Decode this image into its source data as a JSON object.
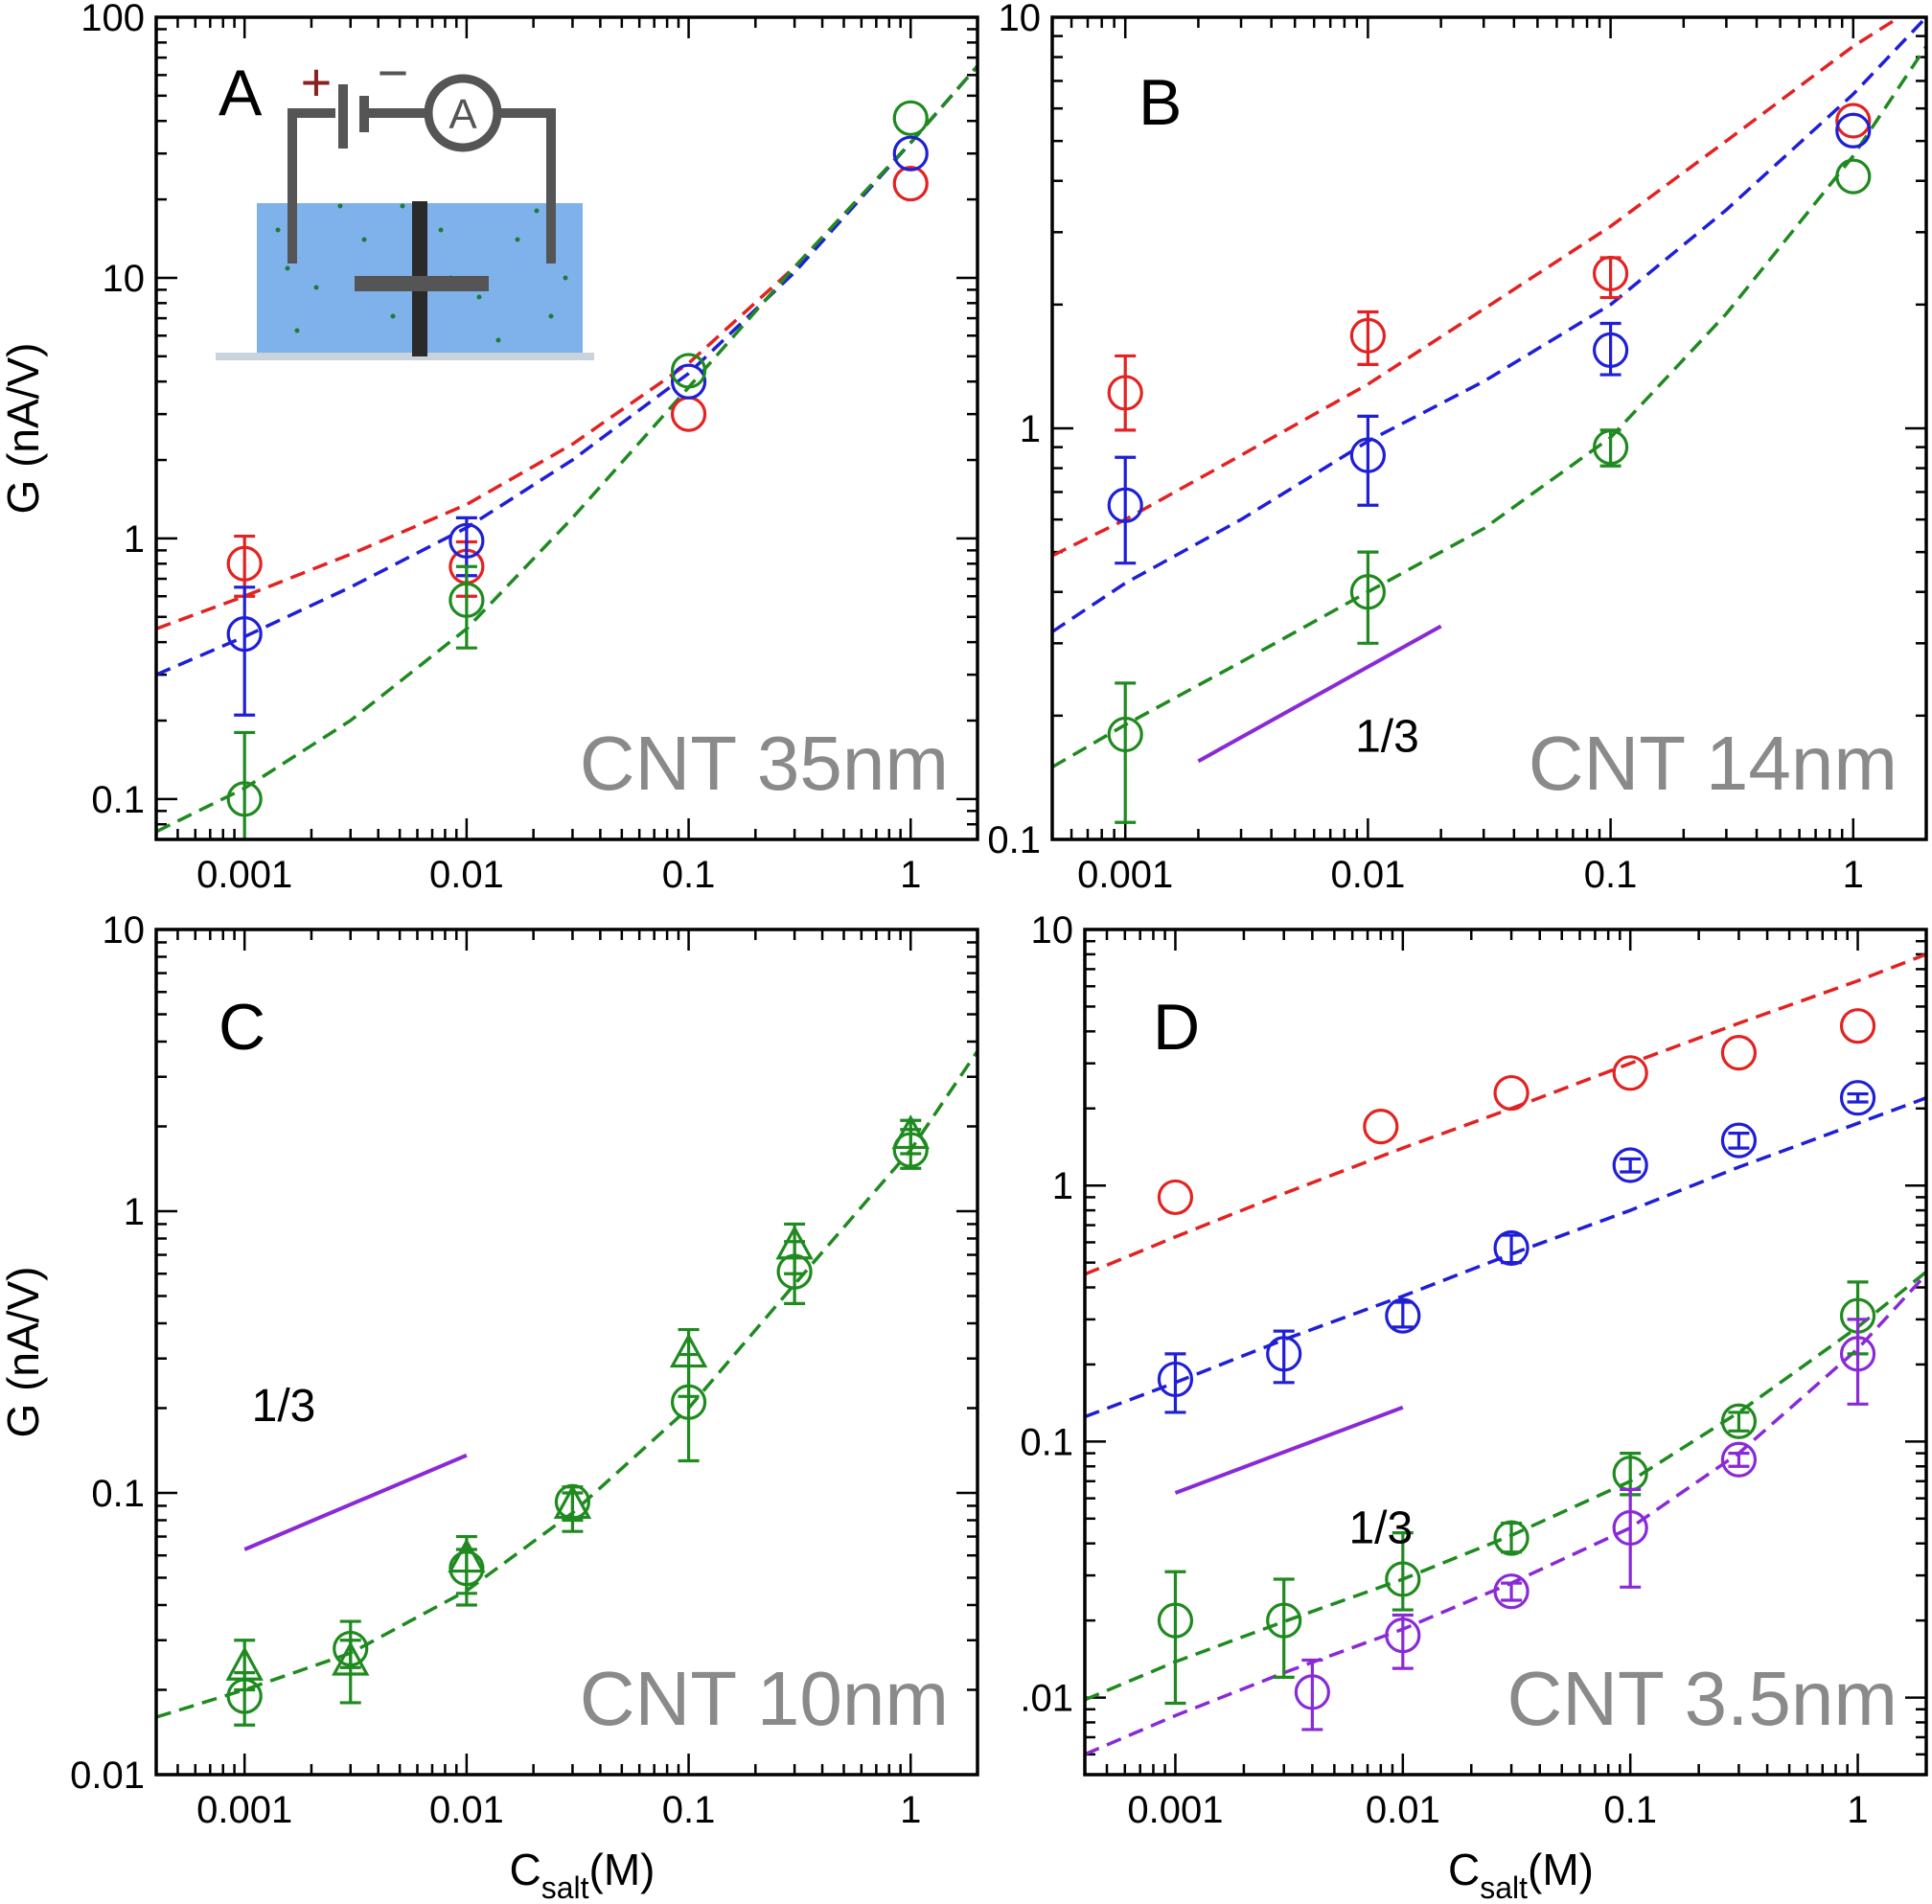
{
  "colors": {
    "red": "#e32222",
    "blue": "#1f1fd6",
    "green": "#1f8a1f",
    "purple": "#8a2ad6",
    "title_gray": "#8a8a8a"
  },
  "chart_data": [
    {
      "id": "A",
      "type": "scatter",
      "letter": "A",
      "title": "CNT 35nm",
      "xscale": "log",
      "yscale": "log",
      "xlim": [
        0.0004,
        2
      ],
      "ylim": [
        0.07,
        100
      ],
      "xticks": [
        0.001,
        0.01,
        0.1,
        1
      ],
      "xtick_labels": [
        "0.001",
        "0.01",
        "0.1",
        "1"
      ],
      "yticks": [
        0.1,
        1,
        10,
        100
      ],
      "ytick_labels": [
        "0.1",
        "1",
        "10",
        "100"
      ],
      "ylabel": "G (nA/V)",
      "xlabel": "",
      "inset": {
        "plus": "+",
        "minus": "−",
        "meter": "A"
      },
      "series": [
        {
          "color": "red",
          "marker": "circle",
          "x": [
            0.001,
            0.01,
            0.1,
            1
          ],
          "y": [
            0.8,
            0.78,
            3.0,
            23
          ],
          "err_low": [
            0.6,
            0.6,
            null,
            null
          ],
          "err_high": [
            1.02,
            0.97,
            null,
            null
          ]
        },
        {
          "color": "blue",
          "marker": "circle",
          "x": [
            0.001,
            0.01,
            0.1,
            1
          ],
          "y": [
            0.43,
            0.98,
            4.0,
            30
          ],
          "err_low": [
            0.21,
            0.72,
            null,
            null
          ],
          "err_high": [
            0.65,
            1.2,
            null,
            null
          ]
        },
        {
          "color": "green",
          "marker": "circle",
          "x": [
            0.001,
            0.01,
            0.1,
            1
          ],
          "y": [
            0.1,
            0.58,
            4.4,
            41
          ],
          "err_low": [
            0.055,
            0.38,
            null,
            null
          ],
          "err_high": [
            0.18,
            0.78,
            null,
            null
          ]
        }
      ],
      "fits": [
        {
          "color": "red",
          "x": [
            0.0004,
            0.001,
            0.003,
            0.01,
            0.03,
            0.1,
            0.3,
            1,
            2
          ],
          "y": [
            0.45,
            0.6,
            0.87,
            1.35,
            2.3,
            4.7,
            11,
            33,
            65
          ]
        },
        {
          "color": "blue",
          "x": [
            0.0004,
            0.001,
            0.003,
            0.01,
            0.03,
            0.1,
            0.3,
            1,
            2
          ],
          "y": [
            0.3,
            0.42,
            0.65,
            1.1,
            2.0,
            4.3,
            10.5,
            33,
            65
          ]
        },
        {
          "color": "green",
          "x": [
            0.0004,
            0.001,
            0.003,
            0.01,
            0.03,
            0.1,
            0.3,
            1,
            2
          ],
          "y": [
            0.075,
            0.11,
            0.2,
            0.45,
            1.2,
            3.8,
            11,
            33,
            65
          ]
        }
      ]
    },
    {
      "id": "B",
      "type": "scatter",
      "letter": "B",
      "title": "CNT 14nm",
      "xscale": "log",
      "yscale": "log",
      "xlim": [
        0.0005,
        2
      ],
      "ylim": [
        0.1,
        10
      ],
      "xticks": [
        0.001,
        0.01,
        0.1,
        1
      ],
      "xtick_labels": [
        "0.001",
        "0.01",
        "0.1",
        "1"
      ],
      "yticks": [
        0.1,
        1,
        10
      ],
      "ytick_labels": [
        "0.1",
        "1",
        "10"
      ],
      "ylabel": "",
      "xlabel": "",
      "slope": {
        "label": "1/3",
        "x": [
          0.002,
          0.02
        ],
        "y": [
          0.155,
          0.33
        ]
      },
      "series": [
        {
          "color": "red",
          "marker": "circle",
          "x": [
            0.001,
            0.01,
            0.1,
            1
          ],
          "y": [
            1.22,
            1.68,
            2.38,
            5.6
          ],
          "err_low": [
            0.99,
            1.43,
            2.08,
            null
          ],
          "err_high": [
            1.5,
            1.92,
            2.6,
            null
          ]
        },
        {
          "color": "blue",
          "marker": "circle",
          "x": [
            0.001,
            0.01,
            0.1,
            1
          ],
          "y": [
            0.65,
            0.86,
            1.55,
            5.3
          ],
          "err_low": [
            0.47,
            0.65,
            1.35,
            null
          ],
          "err_high": [
            0.85,
            1.07,
            1.8,
            null
          ]
        },
        {
          "color": "green",
          "marker": "circle",
          "x": [
            0.001,
            0.01,
            0.1,
            1
          ],
          "y": [
            0.18,
            0.4,
            0.9,
            4.1
          ],
          "err_low": [
            0.11,
            0.3,
            0.81,
            null
          ],
          "err_high": [
            0.24,
            0.5,
            0.99,
            null
          ]
        }
      ],
      "fits": [
        {
          "color": "red",
          "x": [
            0.0005,
            0.001,
            0.003,
            0.01,
            0.03,
            0.1,
            0.3,
            1,
            2
          ],
          "y": [
            0.49,
            0.6,
            0.86,
            1.28,
            1.95,
            3.1,
            5.0,
            8.5,
            11
          ]
        },
        {
          "color": "blue",
          "x": [
            0.0005,
            0.001,
            0.003,
            0.01,
            0.03,
            0.1,
            0.3,
            1,
            2
          ],
          "y": [
            0.32,
            0.42,
            0.6,
            0.93,
            1.3,
            2.0,
            3.4,
            6.5,
            10
          ]
        },
        {
          "color": "green",
          "x": [
            0.0005,
            0.001,
            0.003,
            0.01,
            0.03,
            0.1,
            0.3,
            1,
            2
          ],
          "y": [
            0.15,
            0.19,
            0.27,
            0.4,
            0.57,
            0.95,
            1.9,
            4.6,
            8.5
          ]
        }
      ]
    },
    {
      "id": "C",
      "type": "scatter",
      "letter": "C",
      "title": "CNT 10nm",
      "xscale": "log",
      "yscale": "log",
      "xlim": [
        0.0004,
        2
      ],
      "ylim": [
        0.01,
        10
      ],
      "xticks": [
        0.001,
        0.01,
        0.1,
        1
      ],
      "xtick_labels": [
        "0.001",
        "0.01",
        "0.1",
        "1"
      ],
      "yticks": [
        0.01,
        0.1,
        1,
        10
      ],
      "ytick_labels": [
        "0.01",
        "0.1",
        "1",
        "10"
      ],
      "ylabel": "G (nA/V)",
      "xlabel_main": "C",
      "xlabel_sub": "salt",
      "xlabel_tail": "(M)",
      "slope": {
        "label": "1/3",
        "x": [
          0.001,
          0.01
        ],
        "y": [
          0.063,
          0.136
        ]
      },
      "series": [
        {
          "color": "green",
          "marker": "circle",
          "x": [
            0.001,
            0.003,
            0.01,
            0.03,
            0.1,
            0.3,
            1
          ],
          "y": [
            0.019,
            0.028,
            0.054,
            0.093,
            0.21,
            0.61,
            1.65
          ],
          "err_low": [
            0.015,
            0.024,
            0.044,
            0.08,
            0.13,
            0.47,
            1.42
          ],
          "err_high": [
            0.023,
            0.035,
            0.063,
            0.105,
            0.31,
            0.78,
            1.95
          ]
        },
        {
          "color": "green",
          "marker": "triangle",
          "x": [
            0.001,
            0.003,
            0.01,
            0.03,
            0.1,
            0.3,
            1
          ],
          "y": [
            0.024,
            0.025,
            0.058,
            0.09,
            0.31,
            0.75,
            1.85
          ],
          "err_low": [
            0.02,
            0.018,
            0.04,
            0.073,
            0.22,
            0.6,
            1.6
          ],
          "err_high": [
            0.03,
            0.03,
            0.07,
            0.1,
            0.38,
            0.9,
            2.1
          ]
        }
      ],
      "fits": [
        {
          "color": "green",
          "x": [
            0.0004,
            0.001,
            0.003,
            0.01,
            0.03,
            0.1,
            0.3,
            1,
            2
          ],
          "y": [
            0.016,
            0.02,
            0.027,
            0.045,
            0.085,
            0.2,
            0.55,
            1.65,
            3.7
          ]
        }
      ]
    },
    {
      "id": "D",
      "type": "scatter",
      "letter": "D",
      "title": "CNT 3.5nm",
      "xscale": "log",
      "yscale": "log",
      "xlim": [
        0.0004,
        2
      ],
      "ylim": [
        0.005,
        10
      ],
      "xticks": [
        0.001,
        0.01,
        0.1,
        1
      ],
      "xtick_labels": [
        "0.001",
        "0.01",
        "0.1",
        "1"
      ],
      "yticks": [
        0.01,
        0.1,
        1,
        10
      ],
      "ytick_labels": [
        ".01",
        "0.1",
        "1",
        "10"
      ],
      "ylabel": "",
      "xlabel_main": "C",
      "xlabel_sub": "salt",
      "xlabel_tail": "(M)",
      "slope": {
        "label": "1/3",
        "x": [
          0.001,
          0.01
        ],
        "y": [
          0.063,
          0.136
        ]
      },
      "series": [
        {
          "color": "red",
          "marker": "circle",
          "x": [
            0.001,
            0.008,
            0.03,
            0.1,
            0.3,
            1
          ],
          "y": [
            0.9,
            1.7,
            2.3,
            2.75,
            3.3,
            4.2
          ],
          "err_low": [
            null,
            null,
            null,
            null,
            null,
            null
          ],
          "err_high": [
            null,
            null,
            null,
            null,
            null,
            null
          ]
        },
        {
          "color": "blue",
          "marker": "circle",
          "x": [
            0.001,
            0.003,
            0.01,
            0.03,
            0.1,
            0.3,
            1
          ],
          "y": [
            0.175,
            0.22,
            0.31,
            0.57,
            1.2,
            1.5,
            2.2
          ],
          "err_low": [
            0.13,
            0.17,
            0.28,
            0.5,
            1.13,
            1.4,
            2.12
          ],
          "err_high": [
            0.22,
            0.27,
            0.35,
            0.64,
            1.27,
            1.6,
            2.28
          ]
        },
        {
          "color": "green",
          "marker": "circle",
          "x": [
            0.001,
            0.003,
            0.01,
            0.03,
            0.1,
            0.3,
            1
          ],
          "y": [
            0.02,
            0.02,
            0.029,
            0.042,
            0.075,
            0.12,
            0.31
          ],
          "err_low": [
            0.0095,
            0.012,
            0.022,
            0.037,
            0.062,
            0.11,
            0.22
          ],
          "err_high": [
            0.031,
            0.029,
            0.044,
            0.048,
            0.09,
            0.13,
            0.42
          ]
        },
        {
          "color": "purple",
          "marker": "circle",
          "x": [
            0.004,
            0.01,
            0.03,
            0.1,
            0.3,
            1
          ],
          "y": [
            0.0105,
            0.0175,
            0.026,
            0.046,
            0.085,
            0.22
          ],
          "err_low": [
            0.0075,
            0.013,
            0.024,
            0.027,
            0.08,
            0.14
          ],
          "err_high": [
            0.014,
            0.021,
            0.028,
            0.065,
            0.09,
            0.3
          ]
        }
      ],
      "fits": [
        {
          "color": "red",
          "x": [
            0.0004,
            0.001,
            0.003,
            0.01,
            0.03,
            0.1,
            0.3,
            1,
            2
          ],
          "y": [
            0.45,
            0.63,
            0.93,
            1.4,
            2.0,
            3.0,
            4.3,
            6.3,
            8
          ]
        },
        {
          "color": "blue",
          "x": [
            0.0004,
            0.001,
            0.003,
            0.01,
            0.03,
            0.1,
            0.3,
            1,
            2
          ],
          "y": [
            0.125,
            0.17,
            0.25,
            0.37,
            0.54,
            0.8,
            1.18,
            1.75,
            2.2
          ]
        },
        {
          "color": "green",
          "x": [
            0.0004,
            0.001,
            0.003,
            0.01,
            0.03,
            0.1,
            0.3,
            1,
            2
          ],
          "y": [
            0.0098,
            0.0138,
            0.0198,
            0.029,
            0.043,
            0.07,
            0.13,
            0.28,
            0.46
          ]
        },
        {
          "color": "purple",
          "x": [
            0.0004,
            0.001,
            0.003,
            0.01,
            0.03,
            0.1,
            0.3,
            1,
            2
          ],
          "y": [
            0.006,
            0.0085,
            0.0125,
            0.0185,
            0.028,
            0.046,
            0.09,
            0.23,
            0.45
          ]
        }
      ]
    }
  ]
}
